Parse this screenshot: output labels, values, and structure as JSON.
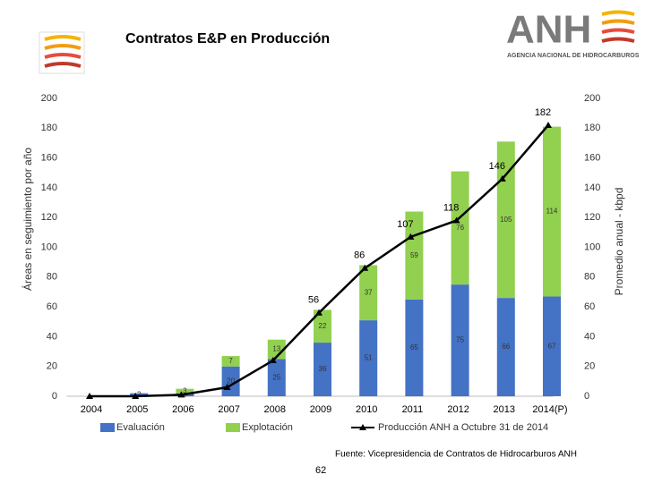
{
  "chart_data": {
    "type": "bar",
    "title": "Contratos E&P en Producción",
    "logo_text": "ANH",
    "logo_subtext": "AGENCIA NACIONAL DE HIDROCARBUROS",
    "y_label": "Áreas en seguimiento por año",
    "y2_label": "Promedio anual - kbpd",
    "source": "Fuente: Vicepresidencia de Contratos de Hidrocarburos ANH",
    "page_number": "62",
    "categories": [
      "2004",
      "2005",
      "2006",
      "2007",
      "2008",
      "2009",
      "2010",
      "2011",
      "2012",
      "2013",
      "2014(P)"
    ],
    "series": [
      {
        "name": "Evaluación",
        "color": "#4472c4",
        "values": [
          null,
          2,
          2,
          20,
          25,
          36,
          51,
          65,
          75,
          66,
          67
        ]
      },
      {
        "name": "Explotación",
        "color": "#92d050",
        "values": [
          null,
          null,
          3,
          7,
          13,
          22,
          37,
          59,
          76,
          105,
          114
        ]
      },
      {
        "name": "Producción ANH a Octubre 31 de 2014",
        "type": "line",
        "axis": "y2",
        "color": "#000000",
        "values": [
          0,
          0,
          1,
          6,
          24,
          56,
          86,
          107,
          118,
          146,
          182
        ],
        "value_labels": [
          null,
          null,
          null,
          null,
          null,
          "56",
          "86",
          "107",
          "118",
          "146",
          "182"
        ]
      }
    ],
    "ylim": [
      0,
      200
    ],
    "yticks": [
      0,
      20,
      40,
      60,
      80,
      100,
      120,
      140,
      160,
      180,
      200
    ],
    "y2lim": [
      0,
      200
    ],
    "y2ticks": [
      0,
      20,
      40,
      60,
      80,
      100,
      120,
      140,
      160,
      180,
      200
    ]
  }
}
